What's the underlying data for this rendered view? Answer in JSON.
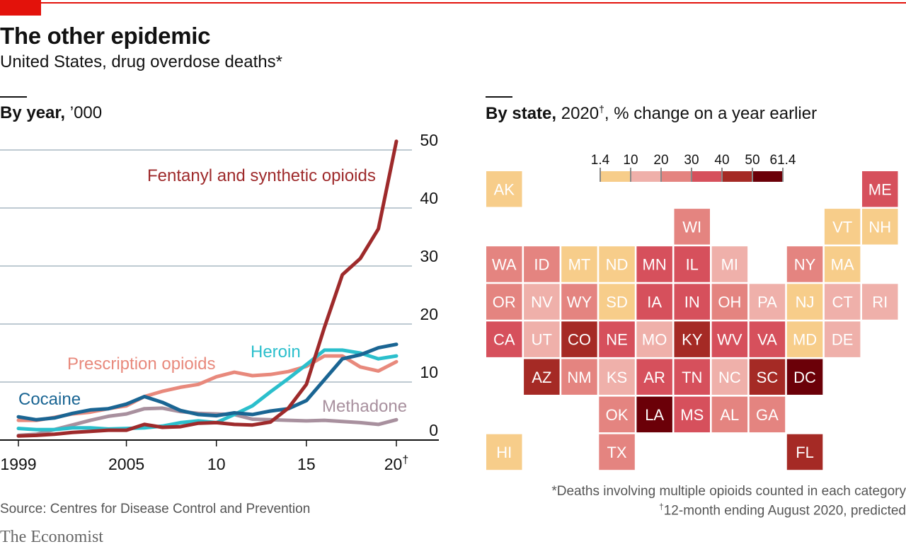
{
  "title": "The other epidemic",
  "subtitle": "United States, drug overdose deaths*",
  "left_panel": {
    "heading_bold": "By year,",
    "heading_rest": " ’000"
  },
  "right_panel": {
    "heading_bold": "By state,",
    "heading_year": " 2020",
    "heading_dagger": "†",
    "heading_rest": ", % change on a year earlier"
  },
  "footnote1": "*Deaths involving multiple opioids counted in each category",
  "footnote2_mark": "†",
  "footnote2": "12-month ending August 2020, predicted",
  "source": "Source: Centres for Disease Control and Prevention",
  "brand": "The Economist",
  "chart_data": [
    {
      "type": "line",
      "x": [
        1999,
        2000,
        2001,
        2002,
        2003,
        2004,
        2005,
        2006,
        2007,
        2008,
        2009,
        2010,
        2011,
        2012,
        2013,
        2014,
        2015,
        2016,
        2017,
        2018,
        2019,
        2020
      ],
      "x_tick_values": [
        1999,
        2005,
        2010,
        2015,
        2020
      ],
      "x_tick_labels": [
        "1999",
        "2005",
        "10",
        "15",
        "20"
      ],
      "x_tick_marks": [
        "",
        "",
        "",
        "",
        "†"
      ],
      "y_ticks": [
        0,
        10,
        20,
        30,
        40,
        50
      ],
      "ylim": [
        0,
        52
      ],
      "grid": true,
      "series": [
        {
          "name": "Fentanyl and synthetic opioids",
          "color": "#9e2a2b",
          "values": [
            0.7,
            0.8,
            1.0,
            1.3,
            1.5,
            1.7,
            1.7,
            2.7,
            2.2,
            2.3,
            2.9,
            3.0,
            2.7,
            2.6,
            3.1,
            5.5,
            9.6,
            19.4,
            28.5,
            31.3,
            36.4,
            51.5
          ]
        },
        {
          "name": "Prescription opioids",
          "color": "#e8897c",
          "values": [
            3.4,
            3.4,
            3.9,
            4.5,
            4.8,
            5.4,
            5.9,
            7.5,
            8.4,
            9.1,
            9.6,
            10.9,
            11.7,
            11.1,
            11.3,
            11.8,
            12.7,
            14.5,
            14.5,
            12.6,
            11.9,
            13.5
          ]
        },
        {
          "name": "Heroin",
          "color": "#2bbfcc",
          "values": [
            2.0,
            1.8,
            1.8,
            2.1,
            2.1,
            1.9,
            2.0,
            2.1,
            2.4,
            3.0,
            3.3,
            3.0,
            4.4,
            5.9,
            8.3,
            10.6,
            13.0,
            15.5,
            15.5,
            15.0,
            14.0,
            14.5
          ]
        },
        {
          "name": "Cocaine",
          "color": "#1a6593",
          "values": [
            4.0,
            3.5,
            3.8,
            4.6,
            5.2,
            5.4,
            6.2,
            7.5,
            6.5,
            5.1,
            4.4,
            4.2,
            4.7,
            4.4,
            5.0,
            5.4,
            6.8,
            10.4,
            14.0,
            14.7,
            15.9,
            16.5
          ]
        },
        {
          "name": "Methadone",
          "color": "#a8909e",
          "values": [
            0.8,
            1.0,
            1.8,
            2.6,
            3.4,
            4.1,
            4.5,
            5.4,
            5.5,
            4.9,
            4.6,
            4.5,
            4.4,
            3.6,
            3.5,
            3.4,
            3.3,
            3.4,
            3.2,
            3.0,
            2.7,
            3.5
          ]
        }
      ]
    },
    {
      "type": "heatmap",
      "legend_ticks": [
        "1.4",
        "10",
        "20",
        "30",
        "40",
        "50",
        "61.4"
      ],
      "legend_colors": [
        "#f7cd8a",
        "#efb0aa",
        "#e48480",
        "#d6505c",
        "#a52a25",
        "#6b0008"
      ],
      "bins": [
        [
          1.4,
          10
        ],
        [
          10,
          20
        ],
        [
          20,
          30
        ],
        [
          30,
          40
        ],
        [
          40,
          50
        ],
        [
          50,
          61.4
        ]
      ],
      "states": [
        {
          "code": "AK",
          "col": 0,
          "row": 0,
          "bin": 0
        },
        {
          "code": "ME",
          "col": 10,
          "row": 0,
          "bin": 3
        },
        {
          "code": "WI",
          "col": 5,
          "row": 1,
          "bin": 2
        },
        {
          "code": "VT",
          "col": 9,
          "row": 1,
          "bin": 0
        },
        {
          "code": "NH",
          "col": 10,
          "row": 1,
          "bin": 0
        },
        {
          "code": "WA",
          "col": 0,
          "row": 2,
          "bin": 2
        },
        {
          "code": "ID",
          "col": 1,
          "row": 2,
          "bin": 2
        },
        {
          "code": "MT",
          "col": 2,
          "row": 2,
          "bin": 0
        },
        {
          "code": "ND",
          "col": 3,
          "row": 2,
          "bin": 0
        },
        {
          "code": "MN",
          "col": 4,
          "row": 2,
          "bin": 3
        },
        {
          "code": "IL",
          "col": 5,
          "row": 2,
          "bin": 3
        },
        {
          "code": "MI",
          "col": 6,
          "row": 2,
          "bin": 1
        },
        {
          "code": "NY",
          "col": 8,
          "row": 2,
          "bin": 2
        },
        {
          "code": "MA",
          "col": 9,
          "row": 2,
          "bin": 0
        },
        {
          "code": "OR",
          "col": 0,
          "row": 3,
          "bin": 2
        },
        {
          "code": "NV",
          "col": 1,
          "row": 3,
          "bin": 1
        },
        {
          "code": "WY",
          "col": 2,
          "row": 3,
          "bin": 2
        },
        {
          "code": "SD",
          "col": 3,
          "row": 3,
          "bin": 0
        },
        {
          "code": "IA",
          "col": 4,
          "row": 3,
          "bin": 3
        },
        {
          "code": "IN",
          "col": 5,
          "row": 3,
          "bin": 3
        },
        {
          "code": "OH",
          "col": 6,
          "row": 3,
          "bin": 2
        },
        {
          "code": "PA",
          "col": 7,
          "row": 3,
          "bin": 1
        },
        {
          "code": "NJ",
          "col": 8,
          "row": 3,
          "bin": 0
        },
        {
          "code": "CT",
          "col": 9,
          "row": 3,
          "bin": 1
        },
        {
          "code": "RI",
          "col": 10,
          "row": 3,
          "bin": 1
        },
        {
          "code": "CA",
          "col": 0,
          "row": 4,
          "bin": 3
        },
        {
          "code": "UT",
          "col": 1,
          "row": 4,
          "bin": 1
        },
        {
          "code": "CO",
          "col": 2,
          "row": 4,
          "bin": 4
        },
        {
          "code": "NE",
          "col": 3,
          "row": 4,
          "bin": 3
        },
        {
          "code": "MO",
          "col": 4,
          "row": 4,
          "bin": 1
        },
        {
          "code": "KY",
          "col": 5,
          "row": 4,
          "bin": 4
        },
        {
          "code": "WV",
          "col": 6,
          "row": 4,
          "bin": 3
        },
        {
          "code": "VA",
          "col": 7,
          "row": 4,
          "bin": 3
        },
        {
          "code": "MD",
          "col": 8,
          "row": 4,
          "bin": 0
        },
        {
          "code": "DE",
          "col": 9,
          "row": 4,
          "bin": 1
        },
        {
          "code": "AZ",
          "col": 1,
          "row": 5,
          "bin": 4
        },
        {
          "code": "NM",
          "col": 2,
          "row": 5,
          "bin": 2
        },
        {
          "code": "KS",
          "col": 3,
          "row": 5,
          "bin": 1
        },
        {
          "code": "AR",
          "col": 4,
          "row": 5,
          "bin": 3
        },
        {
          "code": "TN",
          "col": 5,
          "row": 5,
          "bin": 3
        },
        {
          "code": "NC",
          "col": 6,
          "row": 5,
          "bin": 1
        },
        {
          "code": "SC",
          "col": 7,
          "row": 5,
          "bin": 4
        },
        {
          "code": "DC",
          "col": 8,
          "row": 5,
          "bin": 5
        },
        {
          "code": "OK",
          "col": 3,
          "row": 6,
          "bin": 2
        },
        {
          "code": "LA",
          "col": 4,
          "row": 6,
          "bin": 5
        },
        {
          "code": "MS",
          "col": 5,
          "row": 6,
          "bin": 3
        },
        {
          "code": "AL",
          "col": 6,
          "row": 6,
          "bin": 2
        },
        {
          "code": "GA",
          "col": 7,
          "row": 6,
          "bin": 2
        },
        {
          "code": "HI",
          "col": 0,
          "row": 7,
          "bin": 0
        },
        {
          "code": "TX",
          "col": 3,
          "row": 7,
          "bin": 2
        },
        {
          "code": "FL",
          "col": 8,
          "row": 7,
          "bin": 4
        }
      ]
    }
  ]
}
